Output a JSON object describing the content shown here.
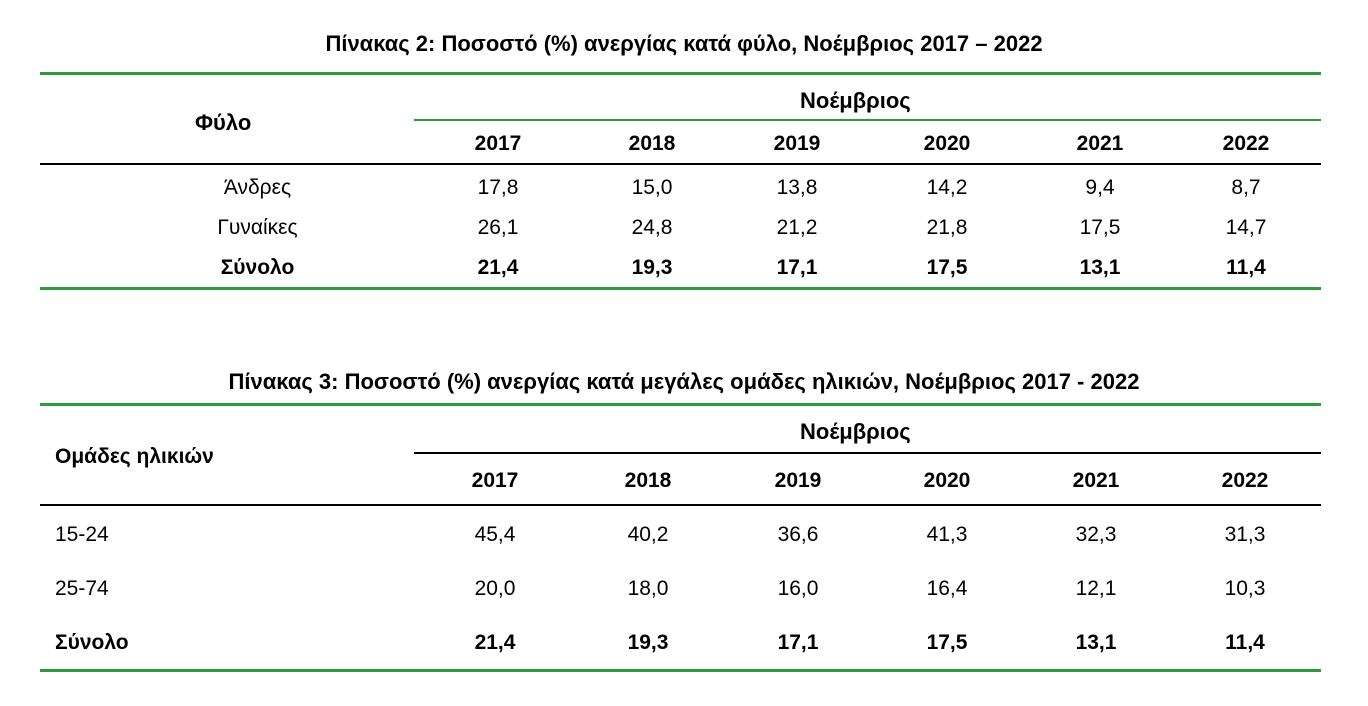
{
  "table2": {
    "title": "Πίνακας 2: Ποσοστό (%) ανεργίας κατά φύλο, Νοέμβριος 2017 – 2022",
    "row_header": "Φύλο",
    "group_header": "Νοέμβριος",
    "years": [
      "2017",
      "2018",
      "2019",
      "2020",
      "2021",
      "2022"
    ],
    "rows": [
      {
        "label": "Άνδρες",
        "values": [
          "17,8",
          "15,0",
          "13,8",
          "14,2",
          "9,4",
          "8,7"
        ]
      },
      {
        "label": "Γυναίκες",
        "values": [
          "26,1",
          "24,8",
          "21,2",
          "21,8",
          "17,5",
          "14,7"
        ]
      },
      {
        "label": "Σύνολο",
        "values": [
          "21,4",
          "19,3",
          "17,1",
          "17,5",
          "13,1",
          "11,4"
        ]
      }
    ]
  },
  "table3": {
    "title": "Πίνακας 3: Ποσοστό (%) ανεργίας κατά μεγάλες ομάδες ηλικιών, Νοέμβριος 2017 - 2022",
    "row_header": "Ομάδες ηλικιών",
    "group_header": "Νοέμβριος",
    "years": [
      "2017",
      "2018",
      "2019",
      "2020",
      "2021",
      "2022"
    ],
    "rows": [
      {
        "label": "15-24",
        "values": [
          "45,4",
          "40,2",
          "36,6",
          "41,3",
          "32,3",
          "31,3"
        ]
      },
      {
        "label": "25-74",
        "values": [
          "20,0",
          "18,0",
          "16,0",
          "16,4",
          "12,1",
          "10,3"
        ]
      },
      {
        "label": "Σύνολο",
        "values": [
          "21,4",
          "19,3",
          "17,1",
          "17,5",
          "13,1",
          "11,4"
        ]
      }
    ]
  },
  "colors": {
    "accent": "#2f9b3c",
    "rule": "#000000"
  }
}
